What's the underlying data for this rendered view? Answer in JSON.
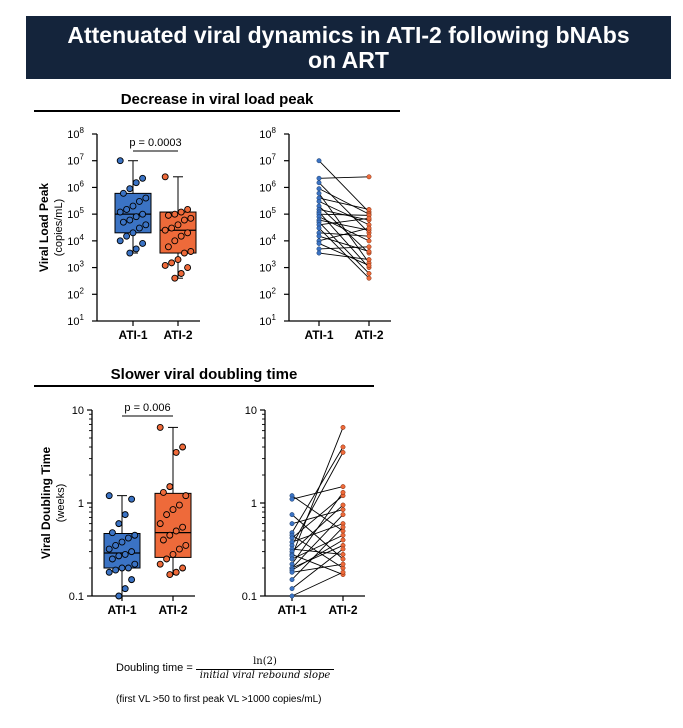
{
  "title_lines": [
    "Attenuated viral dynamics in ATI-2 following bNAbs",
    "on ART"
  ],
  "colors": {
    "banner": "#14243b",
    "ati1": "#3b73c4",
    "ati2": "#ee6a3a",
    "line": "#000000"
  },
  "section_top": {
    "title": "Decrease in viral load peak"
  },
  "section_bottom": {
    "title": "Slower viral doubling time"
  },
  "formula": {
    "prefix": "Doubling time =",
    "numerator": "ln(2)",
    "denominator": "initial viral rebound slope",
    "note": "(first VL >50 to first peak VL >1000 copies/mL)"
  },
  "chart_data": [
    {
      "type": "box",
      "panel": "viral-load-box",
      "ylabel": "Viral Load Peak",
      "ylabel_unit": "(copies/mL)",
      "yscale": "log",
      "ylim": [
        10,
        100000000
      ],
      "yticks": [
        10,
        100,
        1000,
        10000,
        100000,
        1000000,
        10000000,
        100000000
      ],
      "ytick_labels": [
        [
          "10",
          "1"
        ],
        [
          "10",
          "2"
        ],
        [
          "10",
          "3"
        ],
        [
          "10",
          "4"
        ],
        [
          "10",
          "5"
        ],
        [
          "10",
          "6"
        ],
        [
          "10",
          "7"
        ],
        [
          "10",
          "8"
        ]
      ],
      "categories": [
        "ATI-1",
        "ATI-2"
      ],
      "annotation": "p = 0.0003",
      "box_stats": [
        {
          "name": "ATI-1",
          "min": 3500,
          "q1": 20000,
          "median": 100000,
          "q3": 600000,
          "max": 10000000
        },
        {
          "name": "ATI-2",
          "min": 400,
          "q1": 3500,
          "median": 25000,
          "q3": 120000,
          "max": 2500000
        }
      ],
      "points": [
        [
          10000000,
          2200000,
          1500000,
          900000,
          600000,
          400000,
          300000,
          200000,
          150000,
          120000,
          100000,
          80000,
          60000,
          50000,
          40000,
          30000,
          20000,
          15000,
          10000,
          8000,
          5000,
          3500
        ],
        [
          2500000,
          150000,
          120000,
          100000,
          90000,
          70000,
          60000,
          40000,
          30000,
          25000,
          20000,
          15000,
          10000,
          6000,
          4000,
          3500,
          2000,
          1500,
          1200,
          1000,
          600,
          400
        ]
      ]
    },
    {
      "type": "line",
      "panel": "viral-load-paired",
      "yscale": "log",
      "ylim": [
        10,
        100000000
      ],
      "yticks": [
        10,
        100,
        1000,
        10000,
        100000,
        1000000,
        10000000,
        100000000
      ],
      "ytick_labels": [
        [
          "10",
          "1"
        ],
        [
          "10",
          "2"
        ],
        [
          "10",
          "3"
        ],
        [
          "10",
          "4"
        ],
        [
          "10",
          "5"
        ],
        [
          "10",
          "6"
        ],
        [
          "10",
          "7"
        ],
        [
          "10",
          "8"
        ]
      ],
      "categories": [
        "ATI-1",
        "ATI-2"
      ],
      "pairs": [
        [
          10000000,
          120000
        ],
        [
          2200000,
          2500000
        ],
        [
          1500000,
          20000
        ],
        [
          900000,
          100000
        ],
        [
          600000,
          1500
        ],
        [
          400000,
          150000
        ],
        [
          300000,
          40000
        ],
        [
          200000,
          3500
        ],
        [
          150000,
          60000
        ],
        [
          120000,
          1000
        ],
        [
          100000,
          90000
        ],
        [
          80000,
          10000
        ],
        [
          60000,
          25000
        ],
        [
          50000,
          600
        ],
        [
          40000,
          70000
        ],
        [
          30000,
          400
        ],
        [
          20000,
          15000
        ],
        [
          15000,
          4000
        ],
        [
          10000,
          30000
        ],
        [
          8000,
          1200
        ],
        [
          5000,
          6000
        ],
        [
          3500,
          2000
        ]
      ]
    },
    {
      "type": "box",
      "panel": "doubling-time-box",
      "ylabel": "Viral Doubling Time",
      "ylabel_unit": "(weeks)",
      "yscale": "log",
      "ylim": [
        0.1,
        10
      ],
      "yticks": [
        0.1,
        1,
        10
      ],
      "ytick_labels": [
        [
          "0.1",
          ""
        ],
        [
          "1",
          ""
        ],
        [
          "10",
          ""
        ]
      ],
      "categories": [
        "ATI-1",
        "ATI-2"
      ],
      "annotation": "p = 0.006",
      "box_stats": [
        {
          "name": "ATI-1",
          "min": 0.1,
          "q1": 0.2,
          "median": 0.29,
          "q3": 0.47,
          "max": 1.2
        },
        {
          "name": "ATI-2",
          "min": 0.17,
          "q1": 0.26,
          "median": 0.48,
          "q3": 1.27,
          "max": 6.5
        }
      ],
      "points": [
        [
          1.2,
          1.1,
          0.75,
          0.6,
          0.48,
          0.45,
          0.42,
          0.38,
          0.35,
          0.32,
          0.3,
          0.28,
          0.27,
          0.25,
          0.22,
          0.2,
          0.2,
          0.19,
          0.18,
          0.15,
          0.12,
          0.1
        ],
        [
          6.5,
          4.0,
          3.5,
          1.5,
          1.3,
          1.2,
          0.95,
          0.85,
          0.75,
          0.6,
          0.55,
          0.5,
          0.45,
          0.4,
          0.35,
          0.32,
          0.28,
          0.25,
          0.22,
          0.2,
          0.18,
          0.17
        ]
      ]
    },
    {
      "type": "line",
      "panel": "doubling-time-paired",
      "yscale": "log",
      "ylim": [
        0.1,
        10
      ],
      "yticks": [
        0.1,
        1,
        10
      ],
      "ytick_labels": [
        [
          "0.1",
          ""
        ],
        [
          "1",
          ""
        ],
        [
          "10",
          ""
        ]
      ],
      "categories": [
        "ATI-1",
        "ATI-2"
      ],
      "pairs": [
        [
          1.2,
          0.5
        ],
        [
          1.1,
          1.5
        ],
        [
          0.75,
          0.25
        ],
        [
          0.6,
          0.85
        ],
        [
          0.48,
          4.0
        ],
        [
          0.45,
          0.2
        ],
        [
          0.42,
          1.2
        ],
        [
          0.38,
          0.6
        ],
        [
          0.35,
          3.5
        ],
        [
          0.32,
          0.28
        ],
        [
          0.3,
          0.95
        ],
        [
          0.28,
          0.17
        ],
        [
          0.27,
          6.5
        ],
        [
          0.25,
          0.45
        ],
        [
          0.22,
          1.3
        ],
        [
          0.2,
          0.35
        ],
        [
          0.2,
          0.75
        ],
        [
          0.19,
          0.4
        ],
        [
          0.18,
          0.22
        ],
        [
          0.15,
          0.55
        ],
        [
          0.12,
          0.32
        ],
        [
          0.1,
          0.18
        ]
      ]
    }
  ]
}
